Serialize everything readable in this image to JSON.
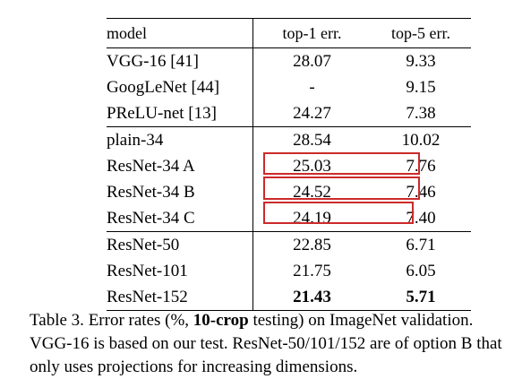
{
  "table": {
    "headers": [
      "model",
      "top-1 err.",
      "top-5 err."
    ],
    "groups": [
      [
        {
          "model": "VGG-16 [41]",
          "top1": "28.07",
          "top5": "9.33"
        },
        {
          "model": "GoogLeNet [44]",
          "top1": "-",
          "top5": "9.15"
        },
        {
          "model": "PReLU-net [13]",
          "top1": "24.27",
          "top5": "7.38"
        }
      ],
      [
        {
          "model": "plain-34",
          "top1": "28.54",
          "top5": "10.02"
        },
        {
          "model": "ResNet-34 A",
          "top1": "25.03",
          "top5": "7.76"
        },
        {
          "model": "ResNet-34 B",
          "top1": "24.52",
          "top5": "7.46"
        },
        {
          "model": "ResNet-34 C",
          "top1": "24.19",
          "top5": "7.40"
        }
      ],
      [
        {
          "model": "ResNet-50",
          "top1": "22.85",
          "top5": "6.71"
        },
        {
          "model": "ResNet-101",
          "top1": "21.75",
          "top5": "6.05"
        },
        {
          "model": "ResNet-152",
          "top1": "21.43",
          "top5": "5.71"
        }
      ]
    ],
    "highlight_color": "#cc2a2a"
  },
  "caption": {
    "label": "Table 3.",
    "text_before_bold": " Error rates (%, ",
    "bold": "10-crop",
    "text_after_bold": " testing) on ImageNet validation. VGG-16 is based on our test. ResNet-50/101/152 are of option B that only uses projections for increasing dimensions."
  }
}
